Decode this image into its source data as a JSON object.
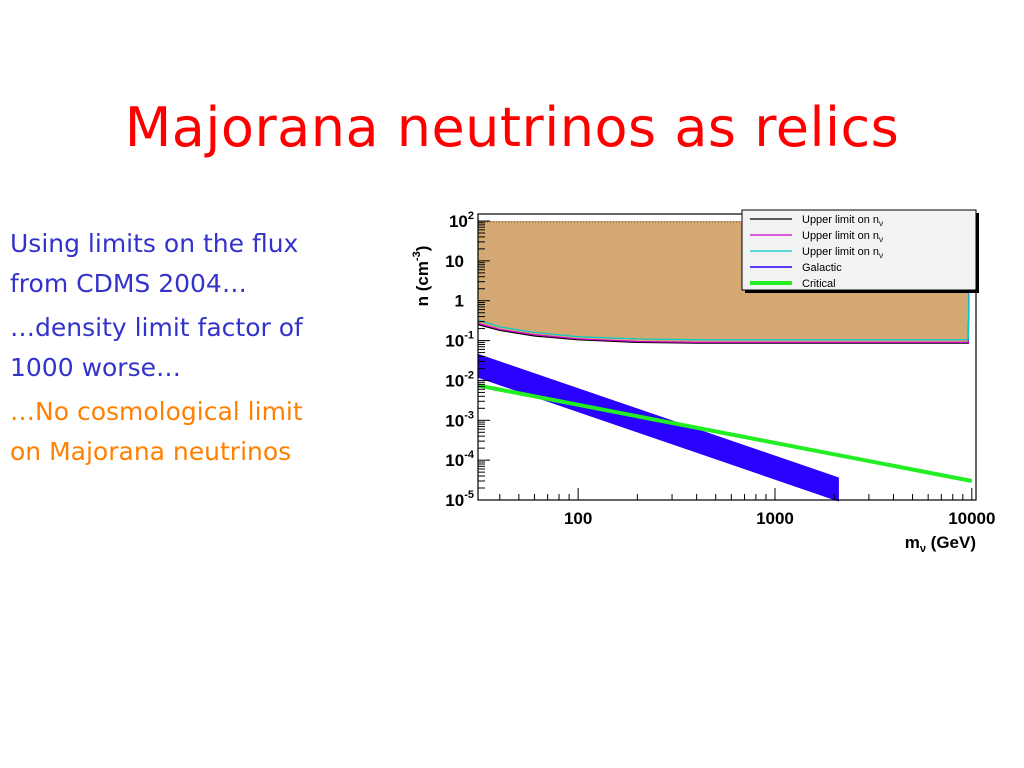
{
  "slide": {
    "title": "Majorana neutrinos as relics",
    "bullets": [
      {
        "text": "Using limits on the flux\nfrom CDMS 2004…",
        "color": "#3333cc"
      },
      {
        "text": "…density limit factor of\n1000 worse…",
        "color": "#3333cc"
      },
      {
        "text": "…No cosmological limit\non Majorana neutrinos",
        "color": "#ff8000"
      }
    ]
  },
  "chart_data": {
    "type": "line",
    "xlabel": "m",
    "xlabel_sub": "ν",
    "xlabel_tail": " (GeV)",
    "ylabel": "n (cm",
    "ylabel_sup": "-3",
    "ylabel_tail": ")",
    "x_scale": "log",
    "y_scale": "log",
    "xlim": [
      31,
      10500
    ],
    "ylim": [
      1e-05,
      150
    ],
    "x_ticks": [
      {
        "value": 100,
        "label": "100"
      },
      {
        "value": 1000,
        "label": "1000"
      },
      {
        "value": 10000,
        "label": "10000"
      }
    ],
    "y_ticks": [
      {
        "value": 100,
        "base": "10",
        "exp": "2"
      },
      {
        "value": 10,
        "base": "10",
        "exp": ""
      },
      {
        "value": 1,
        "base": "1",
        "exp": ""
      },
      {
        "value": 0.1,
        "base": "10",
        "exp": "-1"
      },
      {
        "value": 0.01,
        "base": "10",
        "exp": "-2"
      },
      {
        "value": 0.001,
        "base": "10",
        "exp": "-3"
      },
      {
        "value": 0.0001,
        "base": "10",
        "exp": "-4"
      },
      {
        "value": 1e-05,
        "base": "10",
        "exp": "-5"
      }
    ],
    "excluded_region": {
      "color": "#d4a872",
      "top": 100
    },
    "series": [
      {
        "name": "Upper limit on n",
        "name_sub": "ν",
        "color": "#000000",
        "width": 1.2,
        "x": [
          31,
          40,
          60,
          100,
          200,
          400,
          1000,
          9600,
          9750
        ],
        "y": [
          0.25,
          0.18,
          0.13,
          0.105,
          0.09,
          0.086,
          0.086,
          0.086,
          100
        ]
      },
      {
        "name": "Upper limit on n",
        "name_sub": "ν",
        "color": "#d000d0",
        "width": 1.2,
        "x": [
          31,
          40,
          60,
          100,
          200,
          400,
          1000,
          9600,
          9750
        ],
        "y": [
          0.27,
          0.19,
          0.14,
          0.11,
          0.095,
          0.09,
          0.09,
          0.09,
          100
        ]
      },
      {
        "name": "Upper limit on n",
        "name_sub": "ν",
        "color": "#00cccc",
        "width": 1.2,
        "x": [
          31,
          40,
          60,
          100,
          200,
          400,
          1000,
          9600,
          9750
        ],
        "y": [
          0.33,
          0.22,
          0.16,
          0.125,
          0.11,
          0.105,
          0.105,
          0.105,
          100
        ]
      },
      {
        "name": "Galactic",
        "color": "#2a00ff",
        "width": 1.2,
        "band": true,
        "x": [
          31,
          2100
        ],
        "y_low": [
          0.012,
          9.5e-06
        ],
        "y_high": [
          0.045,
          3.6e-05
        ]
      },
      {
        "name": "Critical",
        "color": "#22ee22",
        "width": 4,
        "x": [
          31,
          10000
        ],
        "y": [
          0.0075,
          3e-05
        ]
      }
    ],
    "legend_position": "top-right"
  }
}
